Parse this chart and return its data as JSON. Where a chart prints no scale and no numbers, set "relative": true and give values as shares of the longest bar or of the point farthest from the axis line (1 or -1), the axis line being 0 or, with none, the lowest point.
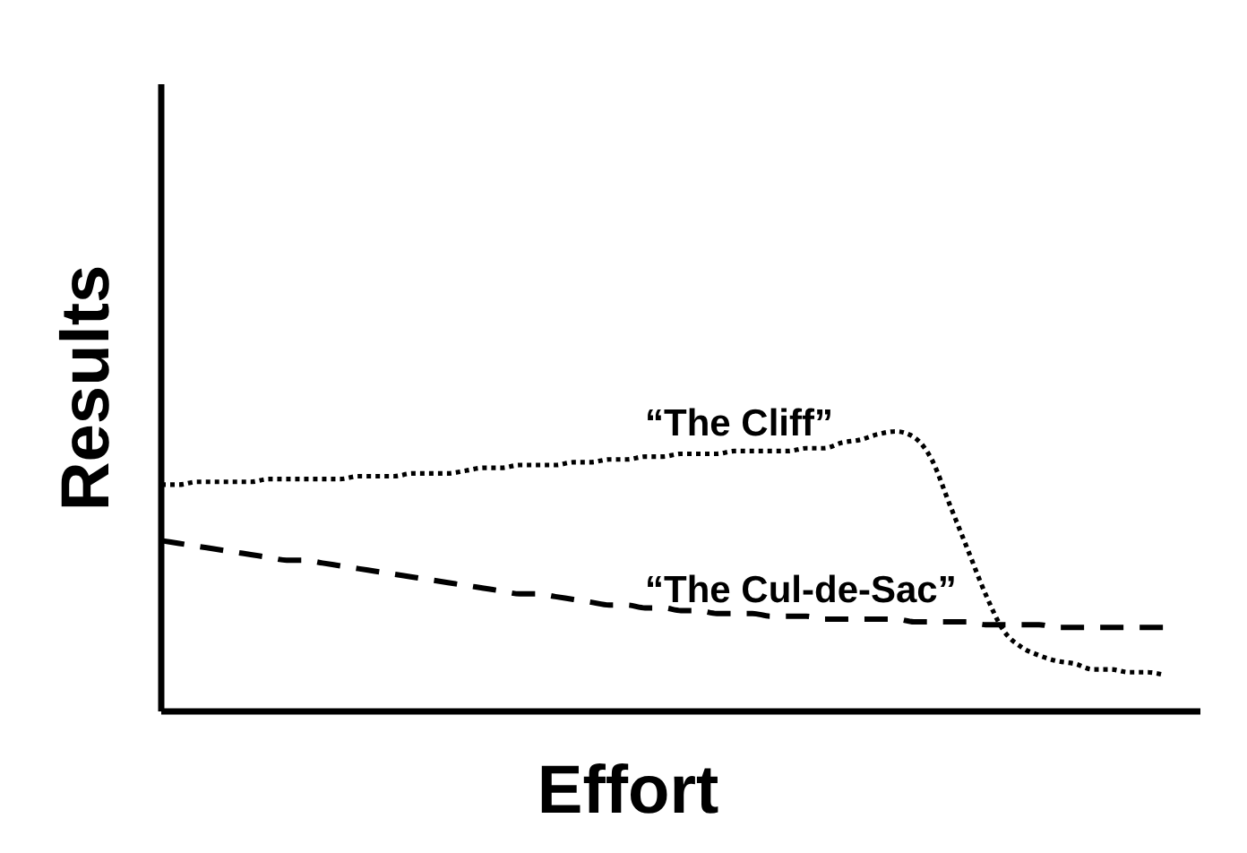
{
  "chart_data": {
    "type": "line",
    "xlabel": "Effort",
    "ylabel": "Results",
    "relative": true,
    "categories": [
      null,
      null,
      null,
      null,
      null,
      null,
      null,
      null,
      null,
      null,
      null,
      null,
      null,
      null,
      null,
      null,
      null,
      null,
      null,
      null,
      null,
      null,
      null,
      null,
      null,
      null,
      null,
      null,
      null,
      null,
      null,
      null,
      null,
      null,
      null,
      null,
      null,
      null,
      null,
      null,
      null,
      null,
      null,
      null,
      null,
      null,
      null,
      null,
      null,
      null,
      null,
      null,
      null,
      null,
      null,
      null,
      null
    ],
    "series": [
      {
        "name": "“The Cliff”",
        "color": "#000000",
        "line_style": "dotted",
        "values": [
          0.81,
          0.81,
          0.82,
          0.82,
          0.82,
          0.82,
          0.83,
          0.83,
          0.83,
          0.83,
          0.83,
          0.84,
          0.84,
          0.84,
          0.85,
          0.85,
          0.85,
          0.86,
          0.87,
          0.87,
          0.88,
          0.88,
          0.88,
          0.89,
          0.89,
          0.9,
          0.9,
          0.91,
          0.91,
          0.92,
          0.92,
          0.92,
          0.93,
          0.93,
          0.93,
          0.93,
          0.94,
          0.94,
          0.96,
          0.97,
          0.99,
          1.0,
          0.98,
          0.9,
          0.74,
          0.58,
          0.42,
          0.29,
          0.23,
          0.2,
          0.18,
          0.17,
          0.15,
          0.15,
          0.14,
          0.14,
          0.13
        ]
      },
      {
        "name": "“The Cul-de-Sac”",
        "color": "#000000",
        "line_style": "dashed",
        "values": [
          0.61,
          0.6,
          0.59,
          0.58,
          0.57,
          0.56,
          0.55,
          0.54,
          0.54,
          0.53,
          0.52,
          0.51,
          0.5,
          0.49,
          0.48,
          0.47,
          0.46,
          0.45,
          0.44,
          0.43,
          0.42,
          0.42,
          0.41,
          0.4,
          0.39,
          0.38,
          0.38,
          0.37,
          0.37,
          0.36,
          0.36,
          0.35,
          0.35,
          0.35,
          0.34,
          0.34,
          0.34,
          0.33,
          0.33,
          0.33,
          0.33,
          0.33,
          0.32,
          0.32,
          0.32,
          0.32,
          0.31,
          0.31,
          0.31,
          0.31,
          0.3,
          0.3,
          0.3,
          0.3,
          0.3,
          0.3,
          0.3
        ]
      }
    ]
  }
}
